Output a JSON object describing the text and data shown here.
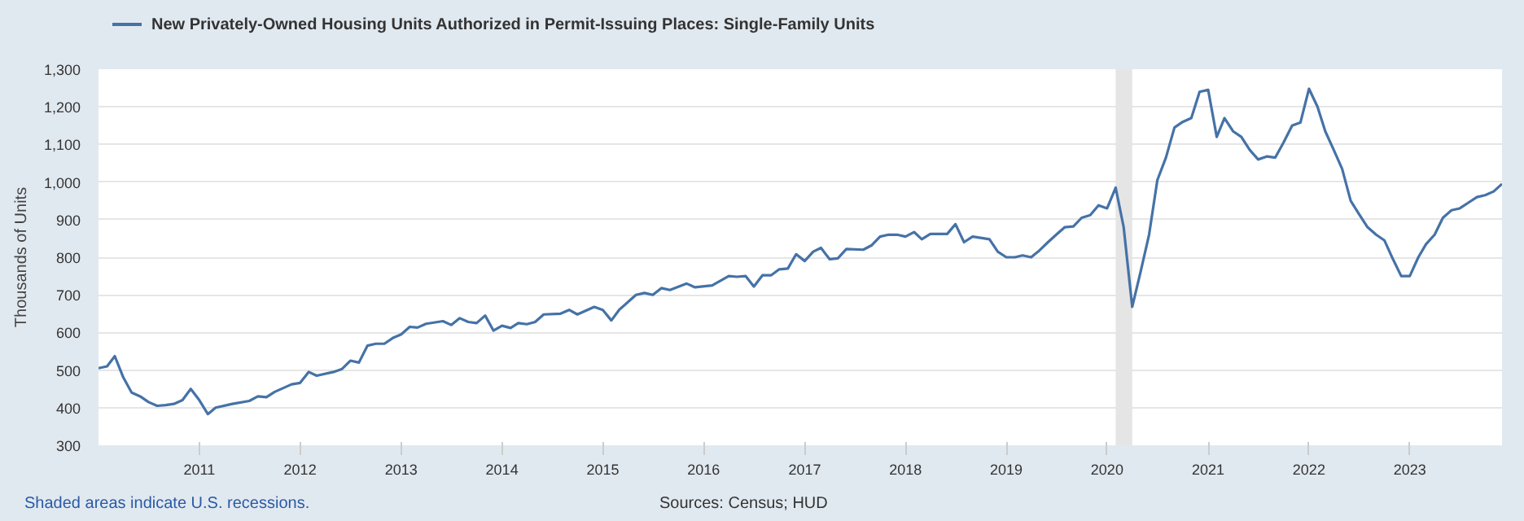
{
  "chart_data": {
    "type": "line",
    "ylabel": "Thousands of Units",
    "annotations": [
      "Shaded areas indicate U.S. recessions.",
      "Sources: Census; HUD"
    ],
    "xlim": [
      "2010-01",
      "2023-12"
    ],
    "xticks": [
      "2011",
      "2012",
      "2013",
      "2014",
      "2015",
      "2016",
      "2017",
      "2018",
      "2019",
      "2020",
      "2021",
      "2022",
      "2023"
    ],
    "ylim": [
      300,
      1300
    ],
    "yticks": [
      {
        "value": 300,
        "label": "300"
      },
      {
        "value": 400,
        "label": "400"
      },
      {
        "value": 500,
        "label": "500"
      },
      {
        "value": 600,
        "label": "600"
      },
      {
        "value": 700,
        "label": "700"
      },
      {
        "value": 800,
        "label": "800"
      },
      {
        "value": 900,
        "label": "900"
      },
      {
        "value": 1000,
        "label": "1,000"
      },
      {
        "value": 1100,
        "label": "1,100"
      },
      {
        "value": 1200,
        "label": "1,200"
      },
      {
        "value": 1300,
        "label": "1,300"
      }
    ],
    "grid": "y",
    "legend": "top left",
    "bands": [
      {
        "axis": "x",
        "from": "2020-02",
        "to": "2020-04",
        "color": "#e5e5e5"
      }
    ],
    "x": [
      "2010-01",
      "2010-02",
      "2010-03",
      "2010-04",
      "2010-05",
      "2010-06",
      "2010-07",
      "2010-08",
      "2010-09",
      "2010-10",
      "2010-11",
      "2010-12",
      "2011-01",
      "2011-02",
      "2011-03",
      "2011-05",
      "2011-07",
      "2011-08",
      "2011-09",
      "2011-10",
      "2011-12",
      "2012-01",
      "2012-02",
      "2012-03",
      "2012-05",
      "2012-06",
      "2012-07",
      "2012-08",
      "2012-09",
      "2012-10",
      "2012-11",
      "2012-12",
      "2013-01",
      "2013-02",
      "2013-03",
      "2013-04",
      "2013-06",
      "2013-07",
      "2013-08",
      "2013-09",
      "2013-10",
      "2013-11",
      "2013-12",
      "2014-01",
      "2014-02",
      "2014-03",
      "2014-04",
      "2014-05",
      "2014-06",
      "2014-08",
      "2014-09",
      "2014-10",
      "2014-12",
      "2015-01",
      "2015-02",
      "2015-03",
      "2015-05",
      "2015-06",
      "2015-07",
      "2015-08",
      "2015-09",
      "2015-11",
      "2015-12",
      "2016-02",
      "2016-04",
      "2016-05",
      "2016-06",
      "2016-07",
      "2016-08",
      "2016-09",
      "2016-10",
      "2016-11",
      "2016-12",
      "2017-01",
      "2017-02",
      "2017-03",
      "2017-04",
      "2017-05",
      "2017-06",
      "2017-08",
      "2017-09",
      "2017-10",
      "2017-11",
      "2017-12",
      "2018-01",
      "2018-02",
      "2018-03",
      "2018-04",
      "2018-06",
      "2018-07",
      "2018-08",
      "2018-09",
      "2018-11",
      "2018-12",
      "2019-01",
      "2019-02",
      "2019-03",
      "2019-04",
      "2019-05",
      "2019-06",
      "2019-07",
      "2019-08",
      "2019-09",
      "2019-10",
      "2019-11",
      "2019-12",
      "2020-01",
      "2020-02",
      "2020-03",
      "2020-04",
      "2020-05",
      "2020-06",
      "2020-07",
      "2020-08",
      "2020-09",
      "2020-10",
      "2020-11",
      "2020-12",
      "2021-01",
      "2021-02",
      "2021-03",
      "2021-04",
      "2021-05",
      "2021-06",
      "2021-07",
      "2021-08",
      "2021-09",
      "2021-10",
      "2021-11",
      "2021-12",
      "2022-01",
      "2022-02",
      "2022-03",
      "2022-04",
      "2022-05",
      "2022-06",
      "2022-07",
      "2022-08",
      "2022-09",
      "2022-10",
      "2022-11",
      "2022-12",
      "2023-01",
      "2023-02",
      "2023-03",
      "2023-04",
      "2023-05",
      "2023-06",
      "2023-07",
      "2023-08",
      "2023-09",
      "2023-10",
      "2023-11",
      "2023-12"
    ],
    "series": [
      {
        "name": "New Privately-Owned Housing Units Authorized in Permit-Issuing Places: Single-Family Units",
        "color": "#4572a7",
        "values": [
          505,
          510,
          537,
          480,
          440,
          430,
          415,
          405,
          407,
          410,
          420,
          450,
          420,
          383,
          400,
          410,
          418,
          430,
          428,
          442,
          462,
          466,
          495,
          485,
          495,
          503,
          525,
          520,
          565,
          570,
          570,
          585,
          595,
          615,
          613,
          623,
          630,
          620,
          638,
          628,
          625,
          645,
          605,
          618,
          612,
          625,
          622,
          628,
          648,
          650,
          660,
          648,
          668,
          660,
          632,
          660,
          700,
          705,
          700,
          718,
          713,
          730,
          720,
          725,
          750,
          748,
          750,
          722,
          752,
          752,
          768,
          770,
          808,
          790,
          815,
          825,
          795,
          797,
          822,
          820,
          832,
          855,
          860,
          860,
          855,
          867,
          848,
          862,
          862,
          888,
          840,
          855,
          848,
          815,
          800,
          800,
          805,
          800,
          818,
          840,
          860,
          880,
          882,
          905,
          912,
          938,
          930,
          985,
          880,
          668,
          760,
          860,
          1005,
          1065,
          1145,
          1160,
          1170,
          1240,
          1245,
          1120,
          1170,
          1135,
          1120,
          1085,
          1060,
          1068,
          1065,
          1105,
          1150,
          1158,
          1248,
          1200,
          1135,
          1085,
          1035,
          950,
          915,
          880,
          860,
          845,
          795,
          750,
          750,
          800,
          835,
          860,
          905,
          925,
          930,
          945,
          960,
          965,
          975,
          995
        ]
      }
    ]
  }
}
